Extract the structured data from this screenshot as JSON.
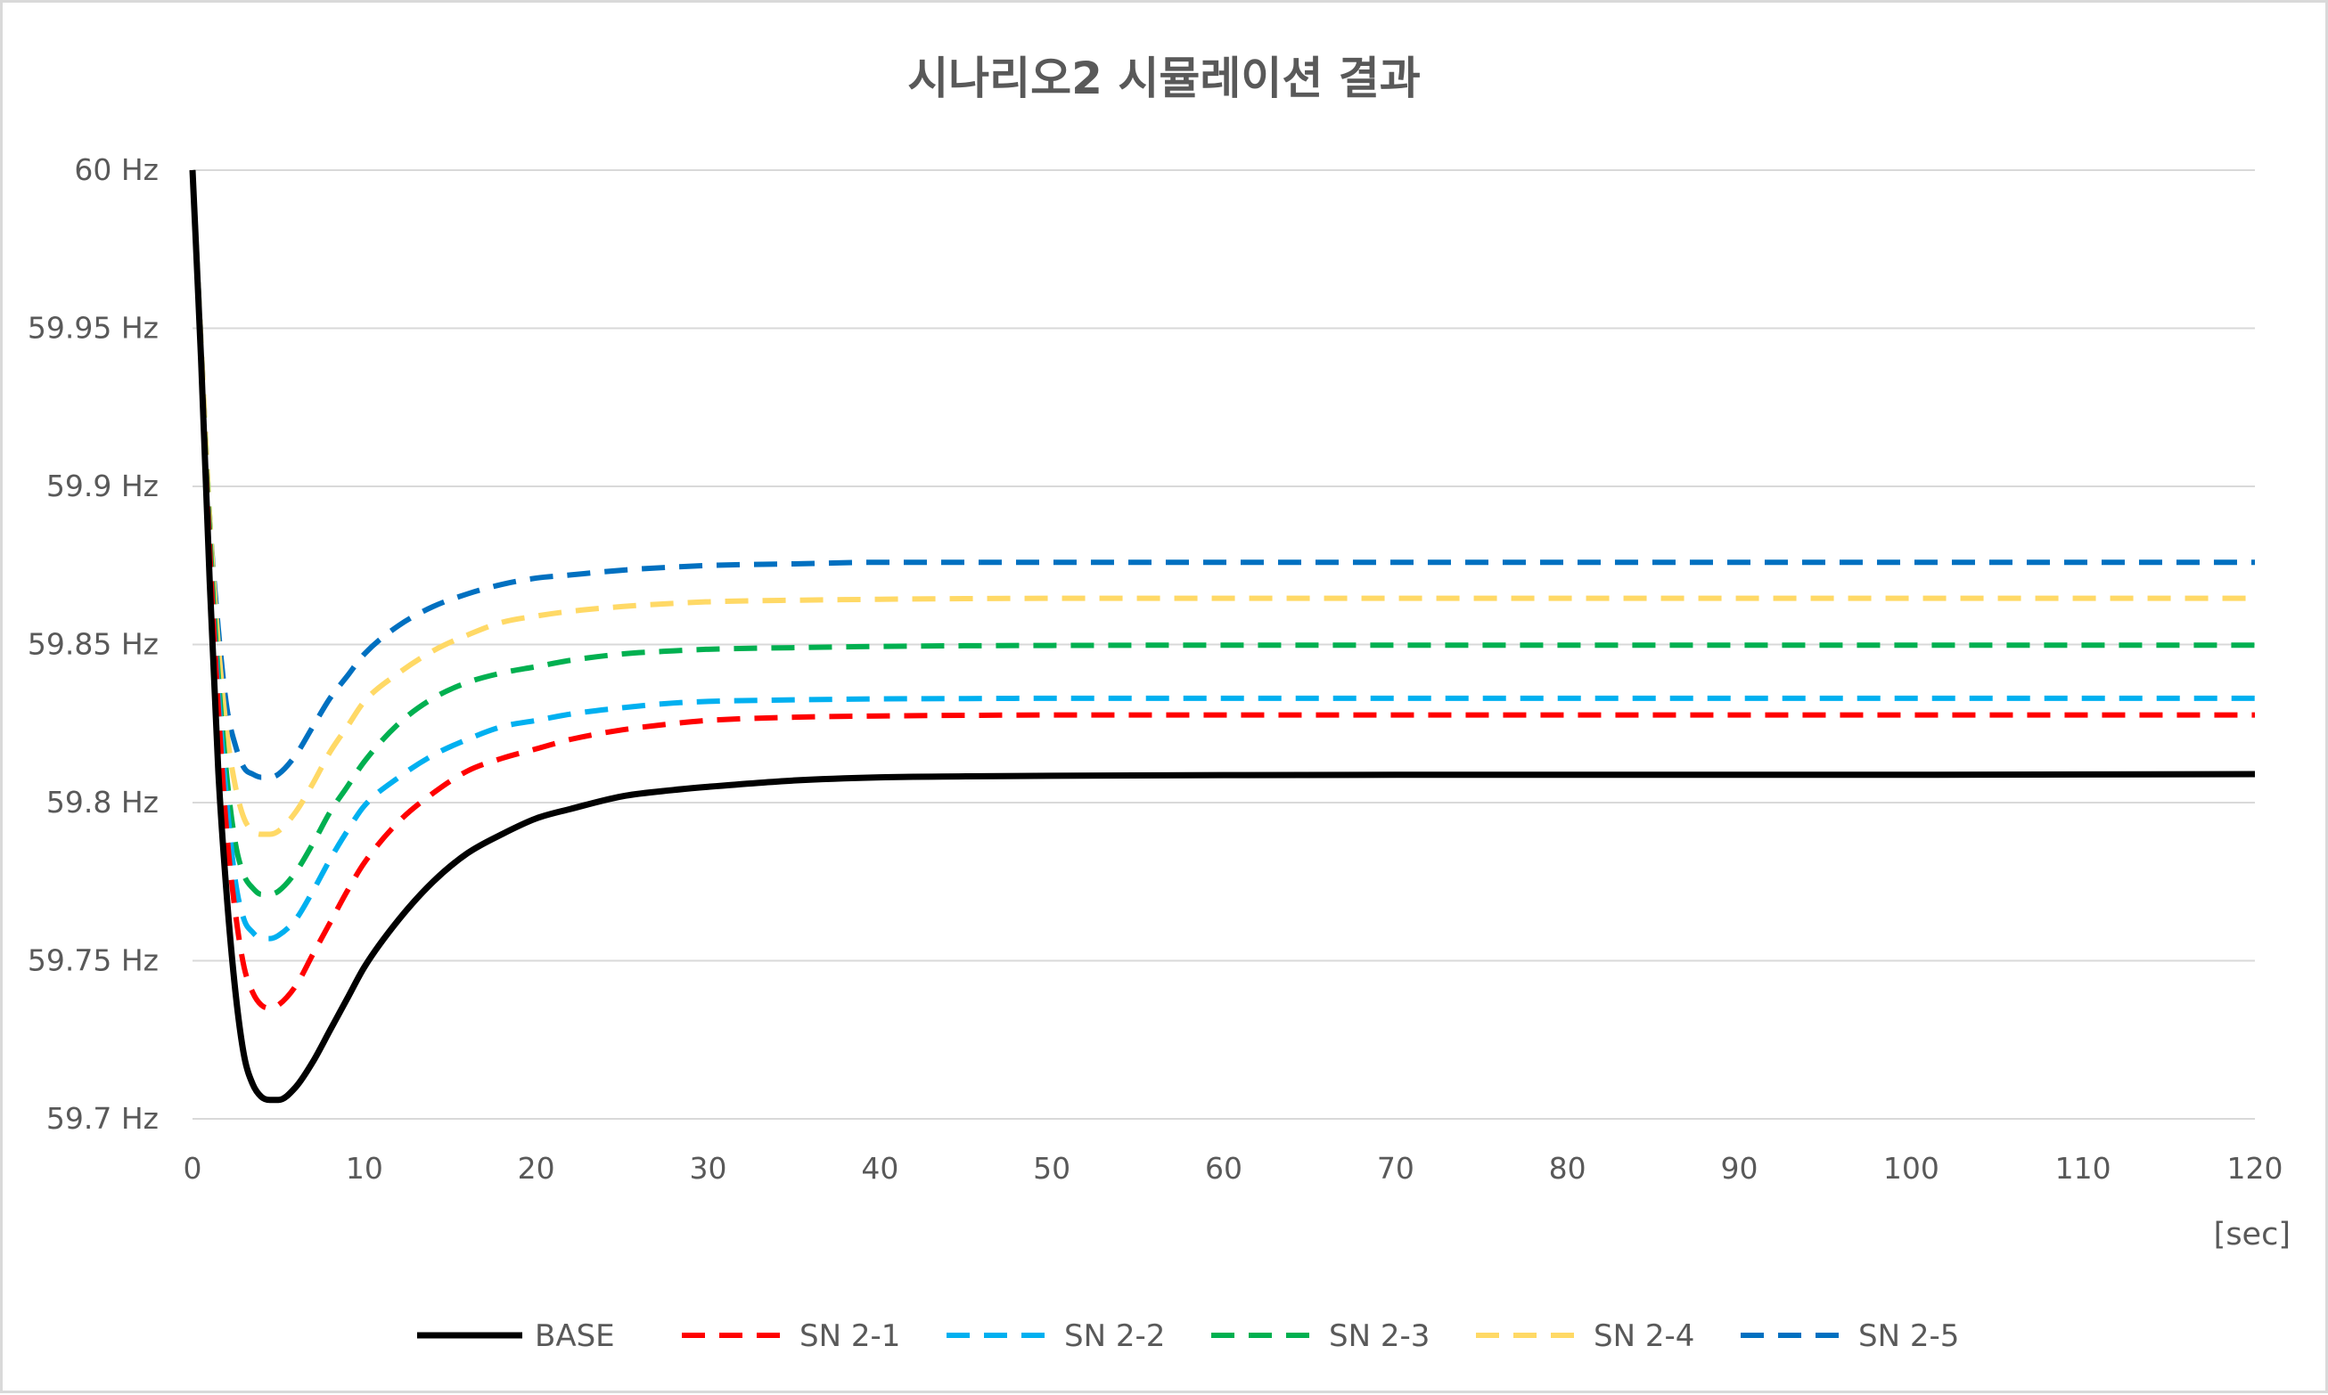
{
  "chart_data": {
    "type": "line",
    "title": "시나리오2 시뮬레이션 결과",
    "xlabel": "[sec]",
    "ylabel": "",
    "xlim": [
      0,
      120
    ],
    "ylim": [
      59.7,
      60
    ],
    "x_ticks": [
      "0",
      "10",
      "20",
      "30",
      "40",
      "50",
      "60",
      "70",
      "80",
      "90",
      "100",
      "110",
      "120"
    ],
    "y_ticks": [
      "60 Hz",
      "59.95 Hz",
      "59.9 Hz",
      "59.85 Hz",
      "59.8 Hz",
      "59.75 Hz",
      "59.7 Hz"
    ],
    "grid": true,
    "legend_position": "bottom",
    "x": [
      0,
      0.5,
      1,
      1.5,
      2,
      2.5,
      3,
      3.5,
      4,
      4.5,
      5,
      6,
      7,
      8,
      9,
      10,
      12,
      14,
      16,
      18,
      20,
      22,
      25,
      28,
      30,
      35,
      40,
      45,
      50,
      60,
      70,
      80,
      90,
      100,
      110,
      120
    ],
    "series": [
      {
        "name": "BASE",
        "color": "#000000",
        "dash": "solid",
        "values": [
          60.0,
          59.94,
          59.87,
          59.81,
          59.77,
          59.74,
          59.72,
          59.711,
          59.707,
          59.706,
          59.706,
          59.71,
          59.718,
          59.728,
          59.738,
          59.748,
          59.763,
          59.775,
          59.784,
          59.79,
          59.795,
          59.798,
          59.802,
          59.804,
          59.805,
          59.807,
          59.808,
          59.8083,
          59.8085,
          59.8087,
          59.8088,
          59.8088,
          59.8088,
          59.8088,
          59.8089,
          59.809
        ]
      },
      {
        "name": "SN 2-1",
        "color": "#ff0000",
        "dash": "dashed",
        "values": [
          60.0,
          59.94,
          59.88,
          59.83,
          59.79,
          59.765,
          59.748,
          59.74,
          59.736,
          59.735,
          59.736,
          59.742,
          59.752,
          59.762,
          59.772,
          59.781,
          59.794,
          59.803,
          59.81,
          59.814,
          59.817,
          59.82,
          59.823,
          59.825,
          59.826,
          59.827,
          59.8274,
          59.8276,
          59.8277,
          59.8277,
          59.8277,
          59.8277,
          59.8277,
          59.8277,
          59.8277,
          59.8277
        ]
      },
      {
        "name": "SN 2-2",
        "color": "#00b0f0",
        "dash": "dashed",
        "values": [
          60.0,
          59.94,
          59.88,
          59.835,
          59.8,
          59.775,
          59.763,
          59.759,
          59.757,
          59.757,
          59.758,
          59.763,
          59.772,
          59.782,
          59.791,
          59.799,
          59.808,
          59.815,
          59.82,
          59.824,
          59.826,
          59.828,
          59.83,
          59.8315,
          59.832,
          59.8325,
          59.8328,
          59.8329,
          59.833,
          59.833,
          59.833,
          59.833,
          59.833,
          59.833,
          59.833,
          59.833
        ]
      },
      {
        "name": "SN 2-3",
        "color": "#00b050",
        "dash": "dashed",
        "values": [
          60.0,
          59.94,
          59.885,
          59.84,
          59.808,
          59.787,
          59.777,
          59.773,
          59.771,
          59.771,
          59.772,
          59.778,
          59.787,
          59.797,
          59.805,
          59.813,
          59.825,
          59.833,
          59.838,
          59.841,
          59.843,
          59.845,
          59.847,
          59.848,
          59.8485,
          59.849,
          59.8494,
          59.8496,
          59.8497,
          59.8498,
          59.8498,
          59.8498,
          59.8498,
          59.8498,
          59.8498,
          59.8498
        ]
      },
      {
        "name": "SN 2-4",
        "color": "#ffd966",
        "dash": "dashed",
        "values": [
          60.0,
          59.945,
          59.89,
          59.85,
          59.822,
          59.805,
          59.795,
          59.791,
          59.79,
          59.79,
          59.791,
          59.797,
          59.806,
          59.816,
          59.824,
          59.832,
          59.841,
          59.848,
          59.853,
          59.857,
          59.859,
          59.8605,
          59.862,
          59.863,
          59.8635,
          59.864,
          59.8643,
          59.8645,
          59.8646,
          59.8646,
          59.8646,
          59.8646,
          59.8646,
          59.8646,
          59.8646,
          59.8646
        ]
      },
      {
        "name": "SN 2-5",
        "color": "#0070c0",
        "dash": "dashed",
        "values": [
          60.0,
          59.945,
          59.89,
          59.855,
          59.83,
          59.818,
          59.811,
          59.809,
          59.808,
          59.808,
          59.809,
          59.815,
          59.824,
          59.833,
          59.84,
          59.847,
          59.856,
          59.862,
          59.866,
          59.869,
          59.871,
          59.872,
          59.8735,
          59.8745,
          59.875,
          59.8755,
          59.876,
          59.876,
          59.876,
          59.876,
          59.876,
          59.876,
          59.876,
          59.876,
          59.876,
          59.876
        ]
      }
    ]
  }
}
